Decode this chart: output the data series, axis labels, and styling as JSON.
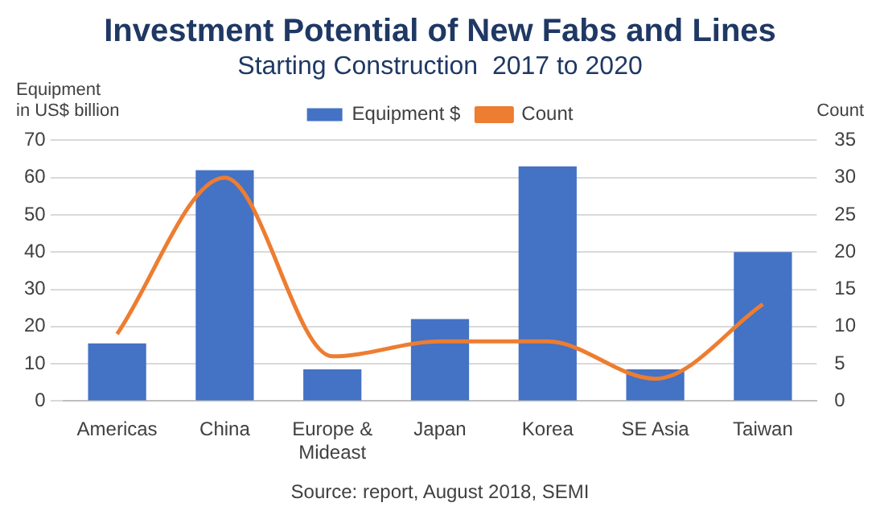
{
  "chart_data": {
    "type": "bar",
    "title": "Investment Potential of New Fabs and Lines",
    "subtitle": "Starting Construction  2017 to 2020",
    "ylabel": "Equipment in US$ billion",
    "y2label": "Count",
    "categories": [
      "Americas",
      "China",
      "Europe & Mideast",
      "Japan",
      "Korea",
      "SE Asia",
      "Taiwan"
    ],
    "series": [
      {
        "name": "Equipment $",
        "color": "#4472c4",
        "values": [
          15.5,
          62,
          8.5,
          22,
          63,
          8.5,
          40
        ]
      },
      {
        "name": "Count",
        "type": "line",
        "axis": "y2",
        "color": "#ed7d31",
        "values": [
          9,
          30,
          6,
          8,
          8,
          3,
          13
        ]
      }
    ],
    "ylim": [
      0,
      70
    ],
    "yticks": [
      0,
      10,
      20,
      30,
      40,
      50,
      60,
      70
    ],
    "y2lim": [
      0,
      35
    ],
    "y2ticks": [
      0,
      5,
      10,
      15,
      20,
      25,
      30,
      35
    ],
    "grid": "y",
    "legend": "top",
    "marker": "none",
    "annotations": [
      "Source: report, August 2018, SEMI"
    ]
  }
}
